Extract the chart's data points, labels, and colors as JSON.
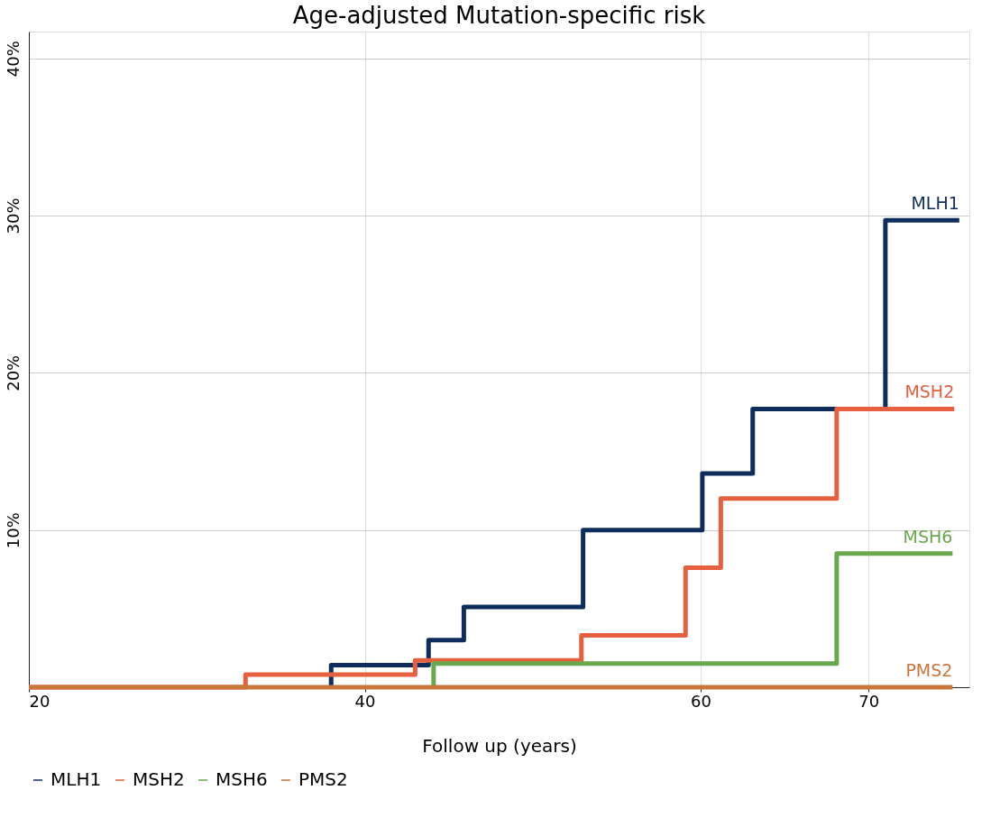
{
  "chart_data": {
    "type": "step",
    "title": "Age-adjusted Mutation-specific risk",
    "xlabel": "Follow up (years)",
    "series": [
      {
        "name": "MLH1",
        "color": "#0f2d5c",
        "x": [
          38,
          38,
          43.8,
          45.9,
          53,
          60.1,
          63.1,
          71,
          75.4
        ],
        "values": [
          0,
          1.4,
          3.0,
          5.1,
          10,
          13.6,
          17.7,
          29.7,
          29.7
        ]
      },
      {
        "name": "MSH2",
        "color": "#e4603f",
        "x": [
          20,
          32.9,
          43,
          52.9,
          59.1,
          61.2,
          68.1,
          75.1
        ],
        "values": [
          0,
          0.8,
          1.7,
          3.3,
          7.6,
          12,
          17.7,
          17.7
        ]
      },
      {
        "name": "MSH6",
        "color": "#6aa84f",
        "x": [
          44.1,
          44.1,
          68.1,
          75
        ],
        "values": [
          0,
          1.5,
          8.5,
          8.5
        ]
      },
      {
        "name": "PMS2",
        "color": "#c8763a",
        "x": [
          20,
          75
        ],
        "values": [
          0,
          0
        ]
      }
    ],
    "xlim": [
      20,
      76
    ],
    "xticks": [
      20,
      40,
      60,
      70
    ],
    "ylim": [
      0,
      41.7
    ],
    "yticks": [
      {
        "value": 10,
        "label": "10%"
      },
      {
        "value": 20,
        "label": "20%"
      },
      {
        "value": 30,
        "label": "30%"
      },
      {
        "value": 40,
        "label": "40%"
      }
    ],
    "grid": true,
    "legend": "bottom",
    "marker": "none",
    "line_style": "solid"
  }
}
